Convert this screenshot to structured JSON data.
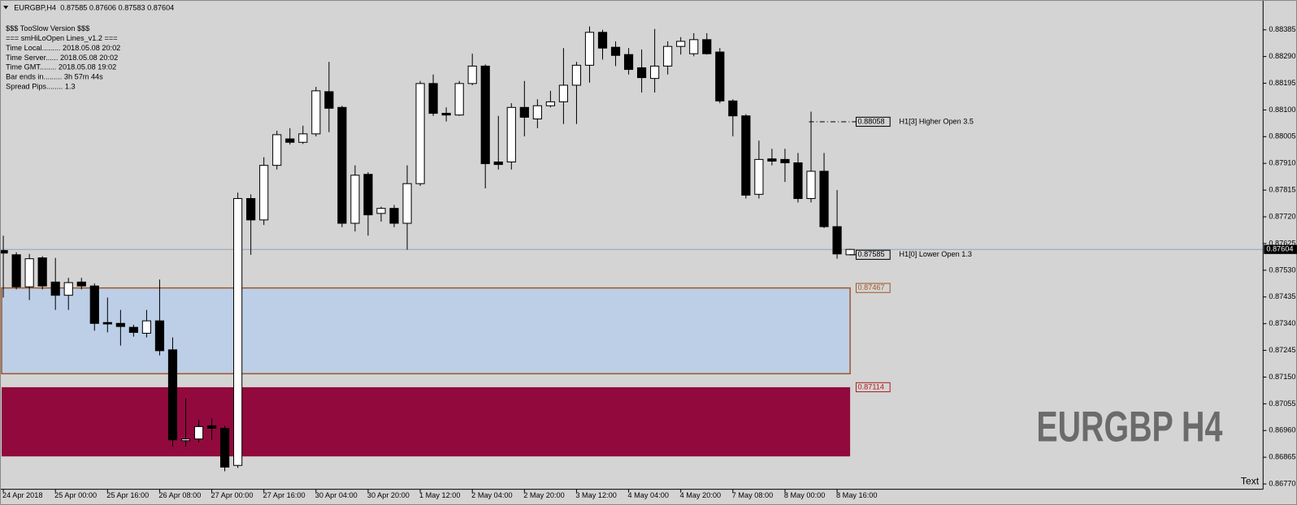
{
  "chart_data": {
    "type": "candlestick",
    "title": "EURGBP,H4",
    "quote": [
      0.87585,
      0.87606,
      0.87583,
      0.87604
    ],
    "info_lines": [
      "$$$ TooSlow Version $$$",
      "=== smHiLoOpen Lines_v1.2 ===",
      "Time Local......... 2018.05.08 20:02",
      "Time Server...... 2018.05.08 20:02",
      "Time GMT........ 2018.05.08 19:02",
      "Bar ends in......... 3h 57m 44s",
      "Spread Pips........ 1.3"
    ],
    "watermark": "EURGBP H4",
    "corner_label": "Text",
    "background": "#d4d4d4",
    "up_color": "#ffffff",
    "down_color": "#000000",
    "categories": [
      "24 Apr 2018",
      null,
      null,
      null,
      "25 Apr 00:00",
      null,
      null,
      null,
      "25 Apr 16:00",
      null,
      null,
      null,
      "26 Apr 08:00",
      null,
      null,
      null,
      "27 Apr 00:00",
      null,
      null,
      null,
      "27 Apr 16:00",
      null,
      null,
      null,
      "30 Apr 04:00",
      null,
      null,
      null,
      "30 Apr 20:00",
      null,
      null,
      null,
      "1 May 12:00",
      null,
      null,
      null,
      "2 May 04:00",
      null,
      null,
      null,
      "2 May 20:00",
      null,
      null,
      null,
      "3 May 12:00",
      null,
      null,
      null,
      "4 May 04:00",
      null,
      null,
      null,
      "4 May 20:00",
      null,
      null,
      null,
      "7 May 08:00",
      null,
      null,
      null,
      "8 May 00:00",
      null,
      null,
      null,
      "8 May 16:00",
      null
    ],
    "open": [
      0.876,
      0.87585,
      0.87471,
      0.87574,
      0.87488,
      0.87441,
      0.87488,
      0.87474,
      0.87344,
      0.87341,
      0.87327,
      0.87306,
      0.8735,
      0.87247,
      0.86924,
      0.8693,
      0.86977,
      0.86968,
      0.86836,
      0.87785,
      0.87709,
      0.87903,
      0.87997,
      0.87985,
      0.88015,
      0.88165,
      0.88109,
      0.87697,
      0.87871,
      0.87732,
      0.8775,
      0.87697,
      0.87838,
      0.88194,
      0.88088,
      0.88082,
      0.88194,
      0.88256,
      0.87915,
      0.87915,
      0.88109,
      0.88068,
      0.88115,
      0.88129,
      0.88188,
      0.88259,
      0.88376,
      0.88323,
      0.88297,
      0.8825,
      0.88212,
      0.88256,
      0.88326,
      0.883,
      0.8835,
      0.88306,
      0.88132,
      0.88079,
      0.878,
      0.87926,
      0.87924,
      0.87912,
      0.87785,
      0.87882,
      0.87685,
      0.87585
    ],
    "high": [
      0.87653,
      0.87594,
      0.87588,
      0.8758,
      0.87574,
      0.87503,
      0.87503,
      0.87483,
      0.87433,
      0.87389,
      0.87336,
      0.87389,
      0.87497,
      0.87291,
      0.87074,
      0.86998,
      0.87003,
      0.86977,
      0.87806,
      0.878,
      0.87932,
      0.88026,
      0.88035,
      0.88044,
      0.88182,
      0.88271,
      0.88115,
      0.87903,
      0.87879,
      0.87756,
      0.87762,
      0.87903,
      0.88203,
      0.88226,
      0.88109,
      0.88203,
      0.883,
      0.88262,
      0.88079,
      0.88124,
      0.88203,
      0.88138,
      0.88168,
      0.8832,
      0.88271,
      0.88397,
      0.88385,
      0.88344,
      0.8832,
      0.88315,
      0.88388,
      0.88344,
      0.88359,
      0.88373,
      0.88373,
      0.8832,
      0.88138,
      0.88085,
      0.87991,
      0.87962,
      0.87962,
      0.87947,
      0.88094,
      0.87947,
      0.87815,
      0.87606
    ],
    "low": [
      0.87433,
      0.87462,
      0.87424,
      0.87462,
      0.87389,
      0.87389,
      0.87462,
      0.87315,
      0.87309,
      0.87262,
      0.87294,
      0.87291,
      0.87227,
      0.86903,
      0.86903,
      0.86918,
      0.86927,
      0.86815,
      0.86827,
      0.87585,
      0.87691,
      0.87888,
      0.87977,
      0.87979,
      0.88006,
      0.88021,
      0.87683,
      0.87668,
      0.87653,
      0.87703,
      0.87683,
      0.87603,
      0.8783,
      0.88079,
      0.88059,
      0.88079,
      0.88188,
      0.87821,
      0.87888,
      0.87888,
      0.88006,
      0.88035,
      0.88109,
      0.8805,
      0.8805,
      0.88197,
      0.88279,
      0.88256,
      0.88226,
      0.88162,
      0.88162,
      0.88226,
      0.88297,
      0.88291,
      0.88297,
      0.88124,
      0.88006,
      0.87785,
      0.87785,
      0.87903,
      0.87844,
      0.87771,
      0.87771,
      0.8768,
      0.87571,
      0.87583
    ],
    "close": [
      0.87591,
      0.87471,
      0.87571,
      0.87474,
      0.87441,
      0.87486,
      0.87474,
      0.87341,
      0.87339,
      0.8733,
      0.87309,
      0.8735,
      0.87244,
      0.86927,
      0.8693,
      0.86974,
      0.86968,
      0.8683,
      0.87785,
      0.87709,
      0.87903,
      0.88012,
      0.87985,
      0.88015,
      0.88168,
      0.88106,
      0.87697,
      0.87868,
      0.87727,
      0.8775,
      0.87697,
      0.87838,
      0.88194,
      0.88088,
      0.88082,
      0.88194,
      0.88256,
      0.87909,
      0.87906,
      0.88109,
      0.88074,
      0.88115,
      0.88129,
      0.88188,
      0.88259,
      0.88376,
      0.8832,
      0.88294,
      0.88244,
      0.88215,
      0.88256,
      0.88326,
      0.88344,
      0.8835,
      0.883,
      0.88132,
      0.88079,
      0.87797,
      0.87924,
      0.87918,
      0.87912,
      0.87785,
      0.87882,
      0.87685,
      0.87588,
      0.87604
    ],
    "ylim": [
      0.86751,
      0.88491
    ],
    "yticks": [
      0.88385,
      {
        "value": 0.8829,
        "label": "0.88290"
      },
      0.88195,
      {
        "value": 0.881,
        "label": "0.88100"
      },
      0.88005,
      {
        "value": 0.8791,
        "label": "0.87910"
      },
      0.87815,
      {
        "value": 0.8772,
        "label": "0.87720"
      },
      0.87625,
      {
        "value": 0.8753,
        "label": "0.87530"
      },
      0.87435,
      {
        "value": 0.8734,
        "label": "0.87340"
      },
      0.87245,
      {
        "value": 0.8715,
        "label": "0.87150"
      },
      0.87055,
      {
        "value": 0.8696,
        "label": "0.86960"
      },
      0.86865,
      {
        "value": 0.8677,
        "label": "0.86770"
      }
    ],
    "current_price": 0.87604,
    "current_price_color": "#8ea3b5",
    "levels": [
      {
        "value": 0.88058,
        "label": "H1[3] Higher Open 3.5",
        "dashed": true
      },
      {
        "value": 0.87585,
        "label": "H1[0] Lower Open 1.3",
        "dashed": false
      }
    ],
    "zones": [
      {
        "top": 0.87467,
        "bottom": 0.87162,
        "color": "#bccfe7",
        "border": "#a0582a"
      },
      {
        "top": 0.87114,
        "bottom": 0.86868,
        "color": "#920a3d",
        "border": "#b02020"
      }
    ]
  }
}
